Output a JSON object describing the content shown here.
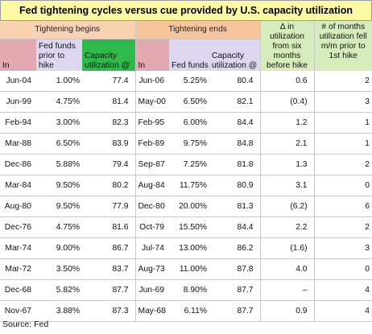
{
  "title": "Fed tightening cycles versus cue provided by U.S. capacity utilization",
  "groups": {
    "begins": "Tightening begins",
    "ends": "Tightening ends"
  },
  "headers": {
    "in_begin": "In",
    "fed_funds_prior": "Fed funds prior to hike",
    "cap_util_begin": "Capacity utilization @",
    "in_end": "In",
    "fed_funds_end": "Fed funds",
    "cap_util_end": "Capacity utilization @",
    "chg_util": "∆ in utilization from six months before hike",
    "months_fell": "# of months utilization fell m/m prior to 1st hike"
  },
  "rows": [
    {
      "begin": "Jun-04",
      "ff_prior": "1.00%",
      "cu_begin": "77.4",
      "end": "Jun-06",
      "ff_end": "5.25%",
      "cu_end": "80.4",
      "chg": "0.6",
      "months": "2"
    },
    {
      "begin": "Jun-99",
      "ff_prior": "4.75%",
      "cu_begin": "81.4",
      "end": "May-00",
      "ff_end": "6.50%",
      "cu_end": "82.1",
      "chg": "(0.4)",
      "months": "3"
    },
    {
      "begin": "Feb-94",
      "ff_prior": "3.00%",
      "cu_begin": "82.3",
      "end": "Feb-95",
      "ff_end": "6.00%",
      "cu_end": "84.4",
      "chg": "1.2",
      "months": "1"
    },
    {
      "begin": "Mar-88",
      "ff_prior": "6.50%",
      "cu_begin": "83.9",
      "end": "Feb-89",
      "ff_end": "9.75%",
      "cu_end": "84.8",
      "chg": "2.1",
      "months": "1"
    },
    {
      "begin": "Dec-86",
      "ff_prior": "5.88%",
      "cu_begin": "79.4",
      "end": "Sep-87",
      "ff_end": "7.25%",
      "cu_end": "81.8",
      "chg": "1.3",
      "months": "2"
    },
    {
      "begin": "Mar-84",
      "ff_prior": "9.50%",
      "cu_begin": "80.2",
      "end": "Aug-84",
      "ff_end": "11.75%",
      "cu_end": "80.9",
      "chg": "3.1",
      "months": "0"
    },
    {
      "begin": "Aug-80",
      "ff_prior": "9.50%",
      "cu_begin": "77.9",
      "end": "Dec-80",
      "ff_end": "20.00%",
      "cu_end": "81.3",
      "chg": "(6.2)",
      "months": "6"
    },
    {
      "begin": "Dec-76",
      "ff_prior": "4.75%",
      "cu_begin": "81.6",
      "end": "Oct-79",
      "ff_end": "15.50%",
      "cu_end": "84.4",
      "chg": "2.2",
      "months": "2"
    },
    {
      "begin": "Mar-74",
      "ff_prior": "9.00%",
      "cu_begin": "86.7",
      "end": "Jul-74",
      "ff_end": "13.00%",
      "cu_end": "86.2",
      "chg": "(1.6)",
      "months": "3"
    },
    {
      "begin": "Mar-72",
      "ff_prior": "3.50%",
      "cu_begin": "83.7",
      "end": "Aug-73",
      "ff_end": "11.00%",
      "cu_end": "87.8",
      "chg": "4.0",
      "months": "0"
    },
    {
      "begin": "Dec-68",
      "ff_prior": "5.82%",
      "cu_begin": "87.7",
      "end": "Jun-69",
      "ff_end": "8.90%",
      "cu_end": "87.7",
      "chg": "–",
      "months": "4"
    },
    {
      "begin": "Nov-67",
      "ff_prior": "3.88%",
      "cu_begin": "87.3",
      "end": "May-68",
      "ff_end": "6.11%",
      "cu_end": "87.7",
      "chg": "0.9",
      "months": "4"
    }
  ],
  "source": "Source: Fed",
  "colors": {
    "title_bg": "#fbf9a2",
    "group_begin_bg": "#f9d2b2",
    "group_end_bg": "#f7c59c",
    "in_header_bg": "#e3a9b1",
    "fed_funds_header_bg": "#dcd7ef",
    "cap_util_header_bg": "#2fb84b",
    "extra_header_bg": "#d7ecbd"
  }
}
